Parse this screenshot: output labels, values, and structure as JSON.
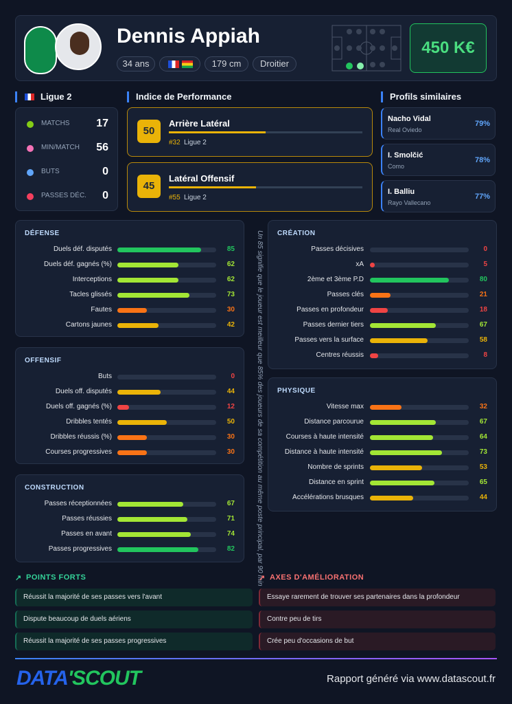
{
  "header": {
    "name": "Dennis Appiah",
    "tags": [
      "34 ans",
      "179 cm",
      "Droitier"
    ],
    "value": "450 K€"
  },
  "league": {
    "title": "Ligue 2",
    "stats": [
      {
        "label": "MATCHS",
        "value": 17
      },
      {
        "label": "MIN/MATCH",
        "value": 56
      },
      {
        "label": "BUTS",
        "value": 0
      },
      {
        "label": "PASSES DÉC.",
        "value": 0
      }
    ]
  },
  "performance": {
    "title": "Indice de Performance",
    "items": [
      {
        "score": 50,
        "role": "Arrière Latéral",
        "rank": "#32",
        "league": "Ligue 2"
      },
      {
        "score": 45,
        "role": "Latéral Offensif",
        "rank": "#55",
        "league": "Ligue 2"
      }
    ]
  },
  "similar": {
    "title": "Profils similaires",
    "items": [
      {
        "name": "Nacho Vidal",
        "club": "Real Oviedo",
        "pct": "79%"
      },
      {
        "name": "I. Smolčić",
        "club": "Como",
        "pct": "78%"
      },
      {
        "name": "I. Balliu",
        "club": "Rayo Vallecano",
        "pct": "77%"
      }
    ]
  },
  "note": "Un 85 signifie que le joueur est meilleur que 85% des joueurs de sa compétition au même poste principal, par 90 min",
  "sections": [
    {
      "title": "DÉFENSE",
      "stats": [
        {
          "label": "Duels déf. disputés",
          "value": 85
        },
        {
          "label": "Duels déf. gagnés (%)",
          "value": 62
        },
        {
          "label": "Interceptions",
          "value": 62
        },
        {
          "label": "Tacles glissés",
          "value": 73
        },
        {
          "label": "Fautes",
          "value": 30
        },
        {
          "label": "Cartons jaunes",
          "value": 42
        }
      ]
    },
    {
      "title": "OFFENSIF",
      "stats": [
        {
          "label": "Buts",
          "value": 0
        },
        {
          "label": "Duels off. disputés",
          "value": 44
        },
        {
          "label": "Duels off. gagnés (%)",
          "value": 12
        },
        {
          "label": "Dribbles tentés",
          "value": 50
        },
        {
          "label": "Dribbles réussis (%)",
          "value": 30
        },
        {
          "label": "Courses progressives",
          "value": 30
        }
      ]
    },
    {
      "title": "CONSTRUCTION",
      "stats": [
        {
          "label": "Passes réceptionnées",
          "value": 67
        },
        {
          "label": "Passes réussies",
          "value": 71
        },
        {
          "label": "Passes en avant",
          "value": 74
        },
        {
          "label": "Passes progressives",
          "value": 82
        }
      ]
    },
    {
      "title": "CRÉATION",
      "stats": [
        {
          "label": "Passes décisives",
          "value": 0
        },
        {
          "label": "xA",
          "value": 5
        },
        {
          "label": "2ème et 3ème P.D",
          "value": 80
        },
        {
          "label": "Passes clés",
          "value": 21
        },
        {
          "label": "Passes en profondeur",
          "value": 18
        },
        {
          "label": "Passes dernier tiers",
          "value": 67
        },
        {
          "label": "Passes vers la surface",
          "value": 58
        },
        {
          "label": "Centres réussis",
          "value": 8
        }
      ]
    },
    {
      "title": "PHYSIQUE",
      "stats": [
        {
          "label": "Vitesse max",
          "value": 32
        },
        {
          "label": "Distance parcourue",
          "value": 67
        },
        {
          "label": "Courses à haute intensité",
          "value": 64
        },
        {
          "label": "Distance à haute intensité",
          "value": 73
        },
        {
          "label": "Nombre de sprints",
          "value": 53
        },
        {
          "label": "Distance en sprint",
          "value": 65
        },
        {
          "label": "Accélérations brusques",
          "value": 44
        }
      ]
    }
  ],
  "strengths": {
    "title": "POINTS FORTS",
    "items": [
      "Réussit la majorité de ses passes vers l'avant",
      "Dispute beaucoup de duels aériens",
      "Réussit la majorité de ses passes progressives"
    ]
  },
  "improvements": {
    "title": "AXES D'AMÉLIORATION",
    "items": [
      "Essaye rarement de trouver ses partenaires dans la profondeur",
      "Contre peu de tirs",
      "Crée peu d'occasions de but"
    ]
  },
  "footer": {
    "logo": [
      "DATA",
      "'SCOUT"
    ],
    "text": "Rapport généré via www.datascout.fr"
  }
}
